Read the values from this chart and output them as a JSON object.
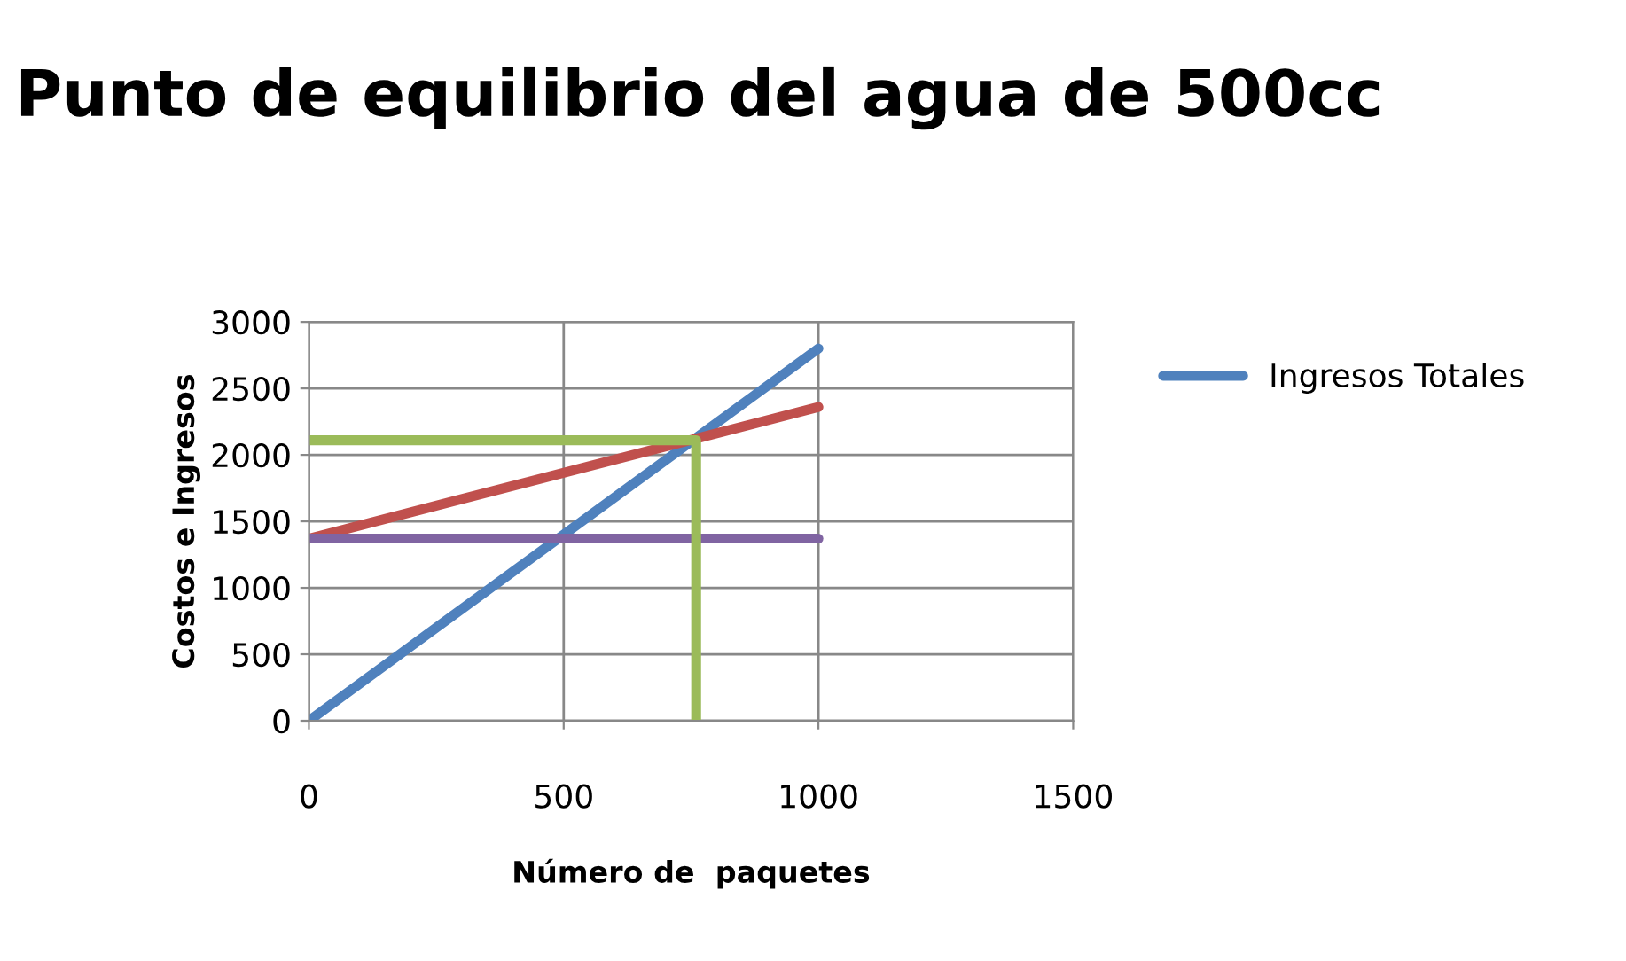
{
  "chart_data": {
    "type": "line",
    "title": "Punto de equilibrio del agua de 500cc",
    "xlabel": "Número de  paquetes",
    "ylabel": "Costos e Ingresos",
    "xlim": [
      0,
      1500
    ],
    "xticks": [
      0,
      500,
      1000,
      1500
    ],
    "ylim": [
      0,
      3000
    ],
    "yticks": [
      0,
      500,
      1000,
      1500,
      2000,
      2500,
      3000
    ],
    "grid": true,
    "legend": "right",
    "line_style": "solid",
    "marker": "none",
    "series": [
      {
        "name": "Ingresos Totales",
        "color": "#4f81bd",
        "x": [
          0,
          1000
        ],
        "values": [
          0,
          2800
        ]
      },
      {
        "color": "#c0504d",
        "x": [
          0,
          1000
        ],
        "values": [
          1370,
          2360
        ]
      },
      {
        "color": "#8064a2",
        "x": [
          0,
          1000
        ],
        "values": [
          1370,
          1370
        ]
      },
      {
        "color": "#9bbb59",
        "x": [
          0,
          760,
          760
        ],
        "values": [
          2110,
          2110,
          0
        ]
      }
    ]
  }
}
